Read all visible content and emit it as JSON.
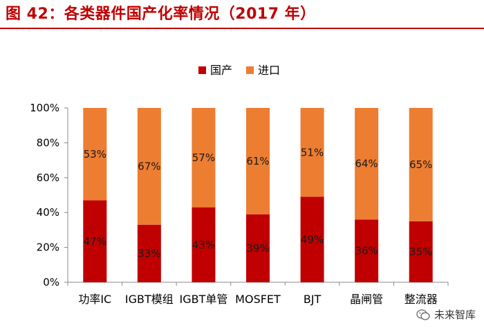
{
  "figure_title": "图 42：各类器件国产化率情况（2017 年）",
  "watermark_text": "未来智库",
  "colors": {
    "title": "#c00000",
    "domestic": "#c00000",
    "import": "#ed7d31",
    "axis": "#888888"
  },
  "chart_data": {
    "type": "bar",
    "stacked": true,
    "percent_stacked": true,
    "categories": [
      "功率IC",
      "IGBT模组",
      "IGBT单管",
      "MOSFET",
      "BJT",
      "晶闸管",
      "整流器"
    ],
    "series": [
      {
        "name": "国产",
        "values": [
          47,
          33,
          43,
          39,
          49,
          36,
          35
        ],
        "labels": [
          "47%",
          "33%",
          "43%",
          "39%",
          "49%",
          "36%",
          "35%"
        ]
      },
      {
        "name": "进口",
        "values": [
          53,
          67,
          57,
          61,
          51,
          64,
          65
        ],
        "labels": [
          "53%",
          "67%",
          "57%",
          "61%",
          "51%",
          "64%",
          "65%"
        ]
      }
    ],
    "y_ticks": [
      "0%",
      "20%",
      "40%",
      "60%",
      "80%",
      "100%"
    ],
    "ylim": [
      0,
      100
    ],
    "legend_position": "top-center",
    "title": "",
    "xlabel": "",
    "ylabel": ""
  }
}
